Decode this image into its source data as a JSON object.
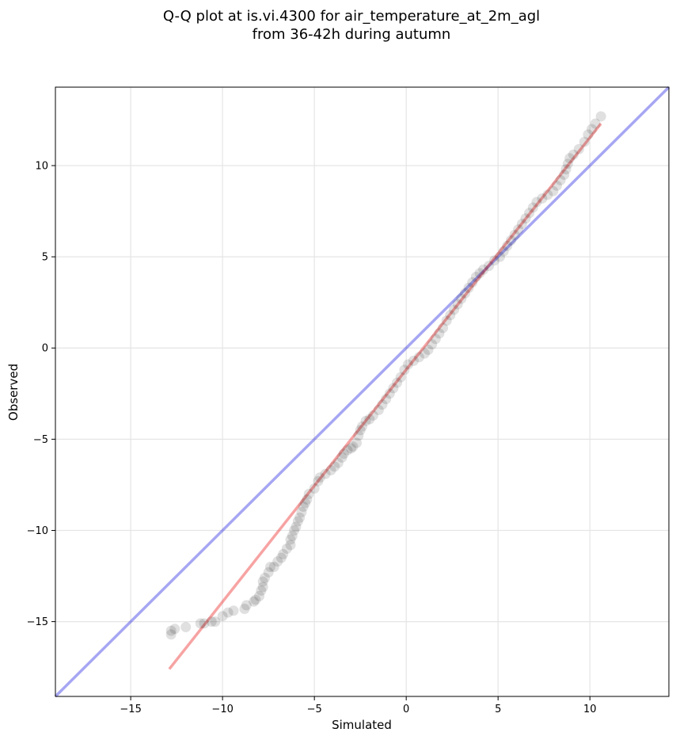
{
  "chart_data": {
    "type": "scatter",
    "title_line1": "Q-Q plot at is.vi.4300 for air_temperature_at_2m_agl",
    "title_line2": "from 36-42h during autumn",
    "xlabel": "Simulated",
    "ylabel": "Observed",
    "xlim": [
      -19.1,
      14.3
    ],
    "ylim": [
      -19.1,
      14.3
    ],
    "xticks": [
      -15,
      -10,
      -5,
      0,
      5,
      10
    ],
    "yticks": [
      -15,
      -10,
      -5,
      0,
      5,
      10
    ],
    "xtick_labels": [
      "−15",
      "−10",
      "−5",
      "0",
      "5",
      "10"
    ],
    "ytick_labels": [
      "−15",
      "−10",
      "−5",
      "0",
      "5",
      "10"
    ],
    "grid": true,
    "colors": {
      "points": "#000000",
      "identity_line": "#0000dd",
      "fit_line": "#ee3333",
      "grid": "#e5e5e5"
    },
    "identity_line": [
      [
        -19.1,
        -19.1
      ],
      [
        14.3,
        14.3
      ]
    ],
    "fit_line": [
      [
        -12.9,
        -17.6
      ],
      [
        10.6,
        12.3
      ]
    ],
    "qq_points": [
      [
        -12.8,
        -15.7
      ],
      [
        -12.8,
        -15.5
      ],
      [
        -12.6,
        -15.4
      ],
      [
        -12.0,
        -15.3
      ],
      [
        -11.2,
        -15.1
      ],
      [
        -11.0,
        -15.1
      ],
      [
        -10.6,
        -15.0
      ],
      [
        -10.4,
        -15.0
      ],
      [
        -10.0,
        -14.7
      ],
      [
        -9.7,
        -14.5
      ],
      [
        -9.4,
        -14.4
      ],
      [
        -8.8,
        -14.3
      ],
      [
        -8.7,
        -14.1
      ],
      [
        -8.3,
        -13.9
      ],
      [
        -8.2,
        -13.8
      ],
      [
        -8.0,
        -13.6
      ],
      [
        -7.9,
        -13.3
      ],
      [
        -7.8,
        -13.1
      ],
      [
        -7.8,
        -12.8
      ],
      [
        -7.7,
        -12.6
      ],
      [
        -7.5,
        -12.3
      ],
      [
        -7.4,
        -12.0
      ],
      [
        -7.2,
        -12.0
      ],
      [
        -7.0,
        -11.7
      ],
      [
        -6.8,
        -11.5
      ],
      [
        -6.7,
        -11.3
      ],
      [
        -6.5,
        -11.0
      ],
      [
        -6.3,
        -10.8
      ],
      [
        -6.3,
        -10.5
      ],
      [
        -6.2,
        -10.3
      ],
      [
        -6.1,
        -10.0
      ],
      [
        -6.0,
        -9.8
      ],
      [
        -5.9,
        -9.5
      ],
      [
        -5.8,
        -9.3
      ],
      [
        -5.7,
        -9.0
      ],
      [
        -5.6,
        -8.7
      ],
      [
        -5.5,
        -8.5
      ],
      [
        -5.4,
        -8.3
      ],
      [
        -5.3,
        -8.0
      ],
      [
        -5.0,
        -7.7
      ],
      [
        -4.8,
        -7.3
      ],
      [
        -4.7,
        -7.1
      ],
      [
        -4.4,
        -6.9
      ],
      [
        -4.1,
        -6.7
      ],
      [
        -3.9,
        -6.5
      ],
      [
        -3.7,
        -6.3
      ],
      [
        -3.5,
        -6.0
      ],
      [
        -3.4,
        -5.8
      ],
      [
        -3.2,
        -5.6
      ],
      [
        -3.0,
        -5.5
      ],
      [
        -2.9,
        -5.4
      ],
      [
        -2.7,
        -5.2
      ],
      [
        -2.6,
        -4.8
      ],
      [
        -2.5,
        -4.5
      ],
      [
        -2.4,
        -4.3
      ],
      [
        -2.2,
        -4.0
      ],
      [
        -2.0,
        -3.9
      ],
      [
        -1.8,
        -3.7
      ],
      [
        -1.5,
        -3.4
      ],
      [
        -1.3,
        -3.1
      ],
      [
        -1.1,
        -2.8
      ],
      [
        -0.9,
        -2.5
      ],
      [
        -0.7,
        -2.2
      ],
      [
        -0.5,
        -1.9
      ],
      [
        -0.3,
        -1.6
      ],
      [
        -0.1,
        -1.2
      ],
      [
        0.1,
        -0.9
      ],
      [
        0.4,
        -0.7
      ],
      [
        0.7,
        -0.5
      ],
      [
        1.0,
        -0.3
      ],
      [
        1.2,
        -0.1
      ],
      [
        1.4,
        0.2
      ],
      [
        1.6,
        0.5
      ],
      [
        1.8,
        0.8
      ],
      [
        2.0,
        1.1
      ],
      [
        2.2,
        1.5
      ],
      [
        2.4,
        1.8
      ],
      [
        2.6,
        2.1
      ],
      [
        2.8,
        2.4
      ],
      [
        3.0,
        2.7
      ],
      [
        3.2,
        3.0
      ],
      [
        3.4,
        3.3
      ],
      [
        3.6,
        3.6
      ],
      [
        3.8,
        3.9
      ],
      [
        4.0,
        4.1
      ],
      [
        4.2,
        4.3
      ],
      [
        4.5,
        4.5
      ],
      [
        4.8,
        4.8
      ],
      [
        5.1,
        5.0
      ],
      [
        5.3,
        5.3
      ],
      [
        5.5,
        5.6
      ],
      [
        5.7,
        5.9
      ],
      [
        5.9,
        6.2
      ],
      [
        6.1,
        6.5
      ],
      [
        6.3,
        6.8
      ],
      [
        6.5,
        7.1
      ],
      [
        6.7,
        7.4
      ],
      [
        6.9,
        7.7
      ],
      [
        7.1,
        8.0
      ],
      [
        7.4,
        8.2
      ],
      [
        7.7,
        8.4
      ],
      [
        8.0,
        8.6
      ],
      [
        8.2,
        8.9
      ],
      [
        8.4,
        9.2
      ],
      [
        8.6,
        9.5
      ],
      [
        8.7,
        9.8
      ],
      [
        8.8,
        10.1
      ],
      [
        8.9,
        10.4
      ],
      [
        9.1,
        10.6
      ],
      [
        9.4,
        10.9
      ],
      [
        9.7,
        11.3
      ],
      [
        9.9,
        11.7
      ],
      [
        10.1,
        12.0
      ],
      [
        10.3,
        12.3
      ],
      [
        10.6,
        12.7
      ]
    ]
  }
}
